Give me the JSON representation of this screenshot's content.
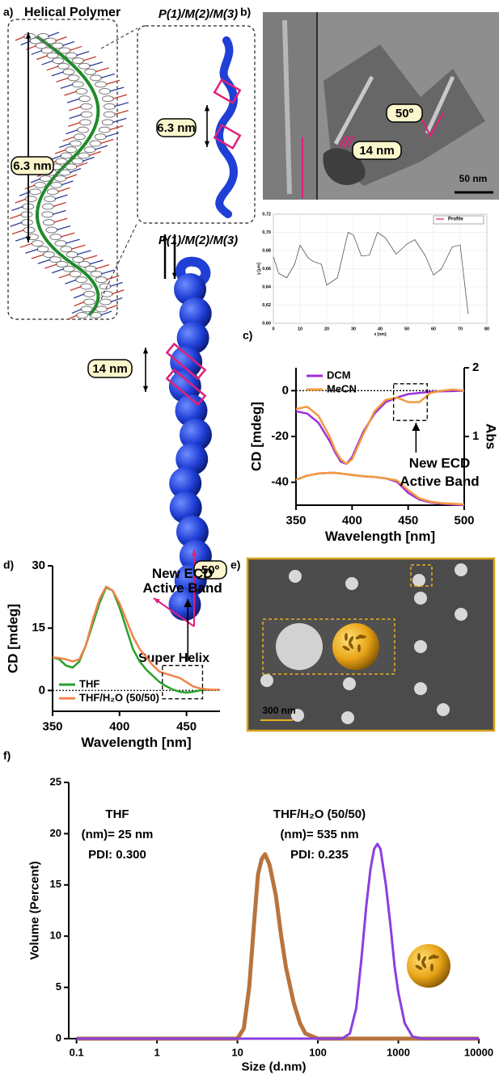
{
  "figure": {
    "panel_labels": {
      "a": "a)",
      "b": "b)",
      "c": "c)",
      "d": "d)",
      "e": "e)",
      "f": "f)"
    },
    "panel_a": {
      "title": "Helical Polymer",
      "polymer_pitch": "6.3 nm",
      "strand_label": "P(1)/M(2)/M(3)",
      "strand_pitch": "6.3 nm",
      "superhelix_label": "P(1)/M(2)/M(3)",
      "superhelix_pitch": "14 nm",
      "superhelix_angle": "50º",
      "caption": "Super Helix"
    },
    "panel_b": {
      "angle": "50º",
      "pitch": "14 nm",
      "scale_bar": "50 nm"
    },
    "panel_e": {
      "scale_bar": "300 nm"
    }
  },
  "chart_data": [
    {
      "type": "line",
      "x": [
        0,
        2,
        5,
        8,
        10,
        13,
        15,
        18,
        20,
        24,
        28,
        30,
        33,
        36,
        39,
        42,
        46,
        50,
        53,
        57,
        60,
        63,
        67,
        70,
        73
      ],
      "series": [
        {
          "name": "Profile",
          "color": "#555555",
          "legend_marker_color": "#e0207a",
          "values": [
            0.673,
            0.655,
            0.65,
            0.665,
            0.686,
            0.672,
            0.668,
            0.665,
            0.642,
            0.65,
            0.7,
            0.697,
            0.674,
            0.675,
            0.7,
            0.694,
            0.676,
            0.687,
            0.692,
            0.674,
            0.653,
            0.66,
            0.684,
            0.686,
            0.61
          ]
        }
      ],
      "xlabel": "x [nm]",
      "ylabel": "y [µm]",
      "xlim": [
        0,
        80
      ],
      "ylim": [
        0.6,
        0.72
      ],
      "xticks": [
        0,
        10,
        20,
        30,
        40,
        50,
        60,
        70,
        80
      ],
      "yticks": [
        {
          "value": 0.6,
          "label": "0,60"
        },
        {
          "value": 0.62,
          "label": "0,62"
        },
        {
          "value": 0.64,
          "label": "0,64"
        },
        {
          "value": 0.66,
          "label": "0,66"
        },
        {
          "value": 0.68,
          "label": "0,68"
        },
        {
          "value": 0.7,
          "label": "0,70"
        },
        {
          "value": 0.72,
          "label": "0,72"
        }
      ],
      "grid": true,
      "legend": "upper right"
    },
    {
      "type": "line",
      "x": [
        350,
        360,
        370,
        380,
        385,
        390,
        395,
        400,
        410,
        420,
        430,
        440,
        450,
        460,
        470,
        480,
        490,
        500
      ],
      "series": [
        {
          "name": "DCM",
          "color": "#9b30d9",
          "values": [
            -9,
            -10,
            -14,
            -22,
            -27,
            -31,
            -32,
            -29,
            -18,
            -10,
            -5,
            -3,
            -1.5,
            -1,
            -0.5,
            -0.3,
            -0.2,
            0
          ]
        },
        {
          "name": "MeCN",
          "color": "#f39a3c",
          "values": [
            -8,
            -7,
            -11,
            -20,
            -26,
            -30,
            -32,
            -30,
            -19,
            -9,
            -4,
            -3,
            -5,
            -5,
            -1,
            0,
            0.5,
            0
          ]
        },
        {
          "name": "DCM",
          "color": "#9b30d9",
          "axis": "y2",
          "values": [
            0.37,
            0.43,
            0.46,
            0.47,
            0.47,
            0.46,
            0.45,
            0.44,
            0.42,
            0.41,
            0.39,
            0.34,
            0.18,
            0.08,
            0.04,
            0.02,
            0.01,
            0
          ]
        },
        {
          "name": "MeCN",
          "color": "#f39a3c",
          "axis": "y2",
          "values": [
            0.37,
            0.43,
            0.46,
            0.47,
            0.47,
            0.46,
            0.45,
            0.44,
            0.42,
            0.41,
            0.39,
            0.36,
            0.22,
            0.1,
            0.05,
            0.03,
            0.02,
            0.01
          ]
        }
      ],
      "xlabel": "Wavelength [nm]",
      "ylabel": "CD [mdeg]",
      "y2label": "Abs",
      "xlim": [
        350,
        500
      ],
      "ylim": [
        -50,
        10
      ],
      "y2lim": [
        0,
        2
      ],
      "xticks": [
        350,
        400,
        450,
        500
      ],
      "yticks": [
        -40,
        -20,
        0
      ],
      "y2ticks": [
        1,
        2
      ],
      "zero_line": true,
      "legend": "upper left",
      "annotation": [
        "New ECD",
        "Active Band"
      ]
    },
    {
      "type": "line",
      "x": [
        350,
        355,
        360,
        365,
        370,
        375,
        380,
        385,
        390,
        395,
        400,
        405,
        410,
        415,
        420,
        425,
        430,
        435,
        440,
        445,
        450,
        455,
        460,
        465,
        470,
        475
      ],
      "series": [
        {
          "name": "THF",
          "color": "#2aa02a",
          "values": [
            8,
            7.5,
            6,
            5.5,
            7,
            11,
            16,
            21,
            24.8,
            24,
            20,
            15,
            10,
            7,
            5,
            3.5,
            2,
            1,
            0.2,
            -0.3,
            -0.5,
            -0.3,
            0,
            0.2,
            0.2,
            0.2
          ]
        },
        {
          "name": "THF/H₂O (50/50)",
          "color": "#f0824a",
          "values": [
            8,
            7.8,
            7.5,
            7,
            7.5,
            11,
            17,
            22,
            25,
            24,
            21,
            17,
            13,
            10,
            8,
            6,
            4.5,
            4,
            3.5,
            3,
            2,
            1,
            0.5,
            0.3,
            0.2,
            0.2
          ]
        }
      ],
      "xlabel": "Wavelength [nm]",
      "ylabel": "CD [mdeg]",
      "xlim": [
        350,
        475
      ],
      "ylim": [
        -5,
        30
      ],
      "xticks": [
        350,
        400,
        450
      ],
      "yticks": [
        0,
        15,
        30
      ],
      "zero_line": true,
      "legend": "lower left",
      "annotation": [
        "New ECD",
        "Active Band"
      ]
    },
    {
      "type": "line",
      "xscale": "log",
      "x": [
        0.1,
        1,
        5,
        10,
        12,
        14,
        16,
        18,
        20,
        22,
        25,
        30,
        35,
        40,
        50,
        60,
        70,
        100,
        150,
        200,
        250,
        300,
        350,
        400,
        450,
        500,
        550,
        600,
        700,
        800,
        900,
        1000,
        1200,
        1500,
        2000,
        10000
      ],
      "series": [
        {
          "name": "THF",
          "color": "#b8743e",
          "text_color": "#a8322a",
          "notes": [
            "(nm)= 25 nm",
            "PDI: 0.300"
          ],
          "values": [
            0,
            0,
            0,
            0,
            1,
            5,
            11,
            16,
            17.5,
            18,
            17,
            14,
            10,
            7,
            3.5,
            1.5,
            0.5,
            0,
            0,
            0,
            0,
            0,
            0,
            0,
            0,
            0,
            0,
            0,
            0,
            0,
            0,
            0,
            0,
            0,
            0,
            0
          ]
        },
        {
          "name": "THF/H₂O (50/50)",
          "color": "#8a3fe0",
          "text_color": "#7a3aa8",
          "notes": [
            "(nm)= 535 nm",
            "PDI: 0.235"
          ],
          "values": [
            0,
            0,
            0,
            0,
            0,
            0,
            0,
            0,
            0,
            0,
            0,
            0,
            0,
            0,
            0,
            0,
            0,
            0,
            0,
            0,
            0.5,
            3,
            8,
            13,
            16.5,
            18.5,
            19,
            18.5,
            15,
            11,
            7,
            4.5,
            1.5,
            0.2,
            0,
            0
          ]
        }
      ],
      "xlabel": "Size (d.nm)",
      "ylabel": "Volume (Percent)",
      "xlim": [
        0.08,
        10000
      ],
      "ylim": [
        0,
        25
      ],
      "xticks": [
        0.1,
        1,
        10,
        100,
        1000,
        10000
      ],
      "yticks": [
        0,
        5,
        10,
        15,
        20,
        25
      ]
    }
  ]
}
